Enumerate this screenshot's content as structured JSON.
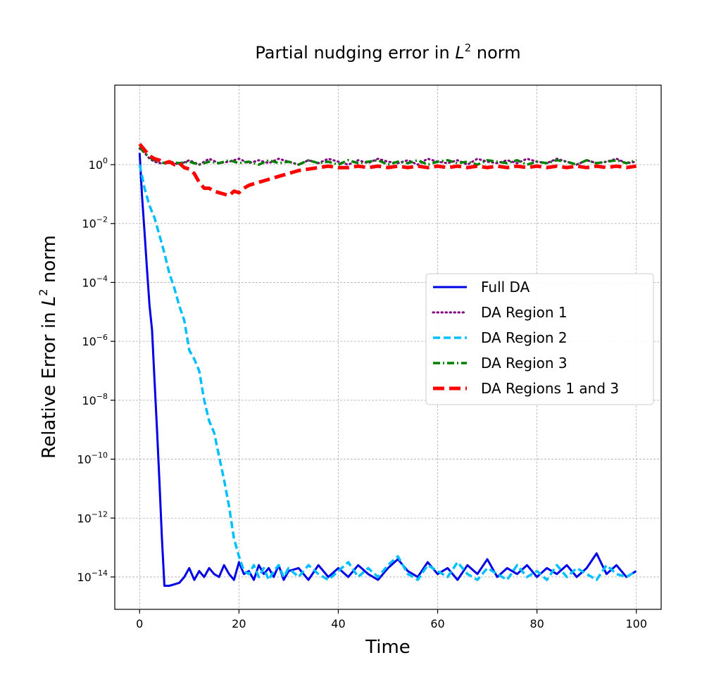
{
  "chart_data": {
    "type": "line",
    "title_prefix": "Partial nudging error in ",
    "title_var": "L",
    "title_sup": "2",
    "title_suffix": " norm",
    "xlabel": "Time",
    "ylabel_prefix": "Relative Error in ",
    "ylabel_var": "L",
    "ylabel_sup": "2",
    "ylabel_suffix": " norm",
    "y_scale": "log",
    "xlim": [
      -5,
      105
    ],
    "ylim_exp": [
      -15.1,
      2.7
    ],
    "x_ticks": [
      0,
      20,
      40,
      60,
      80,
      100
    ],
    "x_tick_labels": [
      "0",
      "20",
      "40",
      "60",
      "80",
      "100"
    ],
    "y_ticks_exp": [
      0,
      -2,
      -4,
      -6,
      -8,
      -10,
      -12,
      -14
    ],
    "y_tick_labels_base": [
      "10",
      "10",
      "10",
      "10",
      "10",
      "10",
      "10",
      "10"
    ],
    "y_tick_labels_exp": [
      "0",
      "−2",
      "−4",
      "−6",
      "−8",
      "−10",
      "−12",
      "−14"
    ],
    "grid": true,
    "legend_position": "center-right",
    "series": [
      {
        "name": "Full DA",
        "color": "#0000e6",
        "style": "solid",
        "x": [
          0,
          0.5,
          1,
          1.5,
          2,
          2.5,
          3,
          3.5,
          4,
          4.5,
          5,
          5.5,
          6,
          7,
          8,
          9,
          10,
          11,
          12,
          13,
          14,
          15,
          16,
          17,
          18,
          19,
          20,
          21,
          22,
          23,
          24,
          25,
          26,
          27,
          28,
          29,
          30,
          32,
          34,
          36,
          38,
          40,
          42,
          44,
          46,
          48,
          50,
          52,
          54,
          56,
          58,
          60,
          62,
          64,
          66,
          68,
          70,
          72,
          74,
          76,
          78,
          80,
          82,
          84,
          86,
          88,
          90,
          92,
          94,
          96,
          98,
          100
        ],
        "log10_y": [
          0.4,
          -1.1,
          -2.3,
          -3.6,
          -4.8,
          -5.6,
          -7.3,
          -9.0,
          -10.8,
          -12.7,
          -14.3,
          -14.3,
          -14.3,
          -14.25,
          -14.2,
          -14.0,
          -13.7,
          -14.1,
          -13.8,
          -14.0,
          -13.7,
          -13.9,
          -14.0,
          -13.6,
          -13.9,
          -14.1,
          -13.5,
          -13.9,
          -13.8,
          -14.1,
          -13.6,
          -13.9,
          -13.7,
          -14.0,
          -13.6,
          -14.1,
          -13.8,
          -13.7,
          -14.1,
          -13.6,
          -14.0,
          -13.7,
          -14.0,
          -13.6,
          -13.9,
          -14.1,
          -13.7,
          -13.4,
          -13.8,
          -14.0,
          -13.5,
          -13.9,
          -13.7,
          -14.1,
          -13.6,
          -13.9,
          -13.4,
          -14.0,
          -13.7,
          -13.9,
          -13.6,
          -14.0,
          -13.7,
          -13.9,
          -13.6,
          -14.0,
          -13.7,
          -13.2,
          -13.9,
          -13.6,
          -14.0,
          -13.8
        ]
      },
      {
        "name": "DA Region 1",
        "color": "#800080",
        "style": "dotted",
        "x": [
          0,
          1,
          2,
          3,
          4,
          5,
          6,
          8,
          10,
          12,
          14,
          16,
          18,
          20,
          22,
          24,
          26,
          28,
          30,
          32,
          34,
          36,
          38,
          40,
          42,
          44,
          46,
          48,
          50,
          52,
          54,
          56,
          58,
          60,
          62,
          64,
          66,
          68,
          70,
          72,
          74,
          76,
          78,
          80,
          82,
          84,
          86,
          88,
          90,
          92,
          94,
          96,
          98,
          100
        ],
        "log10_y": [
          0.55,
          0.4,
          0.2,
          0.1,
          0.05,
          0.05,
          0.1,
          0.0,
          0.15,
          0.0,
          0.2,
          0.05,
          0.1,
          0.2,
          0.05,
          0.15,
          0.05,
          0.2,
          0.1,
          0.0,
          0.15,
          0.05,
          0.2,
          0.1,
          0.0,
          0.15,
          0.05,
          0.2,
          0.1,
          0.05,
          0.15,
          0.0,
          0.2,
          0.1,
          0.05,
          0.15,
          0.0,
          0.2,
          0.1,
          0.05,
          0.15,
          0.05,
          0.2,
          0.1,
          0.05,
          0.2,
          0.1,
          0.0,
          0.15,
          0.05,
          0.1,
          0.2,
          0.05,
          0.1
        ]
      },
      {
        "name": "DA Region 2",
        "color": "#00bfff",
        "style": "dashed",
        "x": [
          0,
          1,
          2,
          3,
          4,
          5,
          6,
          7,
          8,
          9,
          10,
          11,
          12,
          13,
          14,
          15,
          16,
          17,
          18,
          19,
          20,
          21,
          22,
          23,
          24,
          25,
          26,
          27,
          28,
          29,
          30,
          32,
          34,
          36,
          38,
          40,
          42,
          44,
          46,
          48,
          50,
          52,
          54,
          56,
          58,
          60,
          62,
          64,
          66,
          68,
          70,
          72,
          74,
          76,
          78,
          80,
          82,
          84,
          86,
          88,
          90,
          92,
          94,
          96,
          98,
          100
        ],
        "log10_y": [
          0.0,
          -0.8,
          -1.4,
          -1.8,
          -2.4,
          -3.0,
          -3.7,
          -4.2,
          -4.8,
          -5.3,
          -6.3,
          -6.6,
          -7.0,
          -8.0,
          -8.7,
          -9.1,
          -9.9,
          -10.7,
          -11.6,
          -12.7,
          -13.3,
          -13.8,
          -13.9,
          -13.6,
          -14.0,
          -13.7,
          -14.1,
          -13.8,
          -13.6,
          -14.0,
          -13.7,
          -14.0,
          -13.6,
          -13.9,
          -14.1,
          -13.8,
          -13.5,
          -14.0,
          -13.7,
          -14.0,
          -13.6,
          -13.3,
          -13.9,
          -14.1,
          -13.6,
          -13.8,
          -14.0,
          -13.5,
          -13.9,
          -14.1,
          -13.7,
          -13.9,
          -14.1,
          -13.6,
          -14.0,
          -13.8,
          -14.1,
          -13.6,
          -14.0,
          -13.7,
          -13.9,
          -14.1,
          -13.6,
          -13.9,
          -14.0,
          -13.8
        ]
      },
      {
        "name": "DA Region 3",
        "color": "#008000",
        "style": "dashdot",
        "x": [
          0,
          1,
          2,
          3,
          4,
          5,
          6,
          8,
          10,
          12,
          14,
          16,
          18,
          20,
          22,
          24,
          26,
          28,
          30,
          32,
          34,
          36,
          38,
          40,
          42,
          44,
          46,
          48,
          50,
          52,
          54,
          56,
          58,
          60,
          62,
          64,
          66,
          68,
          70,
          72,
          74,
          76,
          78,
          80,
          82,
          84,
          86,
          88,
          90,
          92,
          94,
          96,
          98,
          100
        ],
        "log10_y": [
          0.6,
          0.4,
          0.25,
          0.15,
          0.1,
          0.05,
          0.1,
          0.05,
          0.1,
          0.0,
          0.1,
          0.05,
          0.15,
          0.05,
          0.1,
          0.0,
          0.15,
          0.05,
          0.1,
          0.0,
          0.15,
          0.05,
          0.1,
          0.0,
          0.15,
          0.05,
          0.1,
          0.15,
          0.0,
          0.1,
          0.05,
          0.15,
          0.0,
          0.1,
          0.15,
          0.05,
          0.1,
          0.0,
          0.15,
          0.1,
          0.05,
          0.15,
          0.0,
          0.1,
          0.05,
          0.15,
          0.1,
          0.0,
          0.15,
          0.05,
          0.1,
          0.15,
          0.05,
          0.15
        ]
      },
      {
        "name": "DA Regions 1 and 3",
        "color": "#ff0000",
        "style": "bigdash",
        "x": [
          0,
          1,
          2,
          3,
          4,
          5,
          6,
          7,
          8,
          9,
          10,
          11,
          12,
          13,
          14,
          15,
          16,
          17,
          18,
          19,
          20,
          21,
          22,
          24,
          26,
          28,
          30,
          32,
          34,
          36,
          38,
          40,
          42,
          44,
          46,
          48,
          50,
          52,
          54,
          56,
          58,
          60,
          62,
          64,
          66,
          68,
          70,
          72,
          74,
          76,
          78,
          80,
          82,
          84,
          86,
          88,
          90,
          92,
          94,
          96,
          98,
          100
        ],
        "log10_y": [
          0.7,
          0.5,
          0.3,
          0.2,
          0.15,
          0.05,
          0.1,
          0.0,
          0.05,
          -0.1,
          -0.15,
          -0.3,
          -0.6,
          -0.8,
          -0.8,
          -0.9,
          -0.95,
          -1.0,
          -1.05,
          -0.9,
          -0.95,
          -0.8,
          -0.7,
          -0.6,
          -0.5,
          -0.4,
          -0.3,
          -0.2,
          -0.15,
          -0.1,
          -0.05,
          -0.1,
          -0.1,
          -0.05,
          -0.1,
          -0.05,
          -0.1,
          -0.05,
          -0.1,
          -0.05,
          -0.1,
          -0.05,
          -0.1,
          -0.05,
          -0.1,
          -0.05,
          -0.1,
          -0.05,
          -0.1,
          -0.05,
          -0.1,
          -0.05,
          -0.1,
          -0.05,
          -0.1,
          -0.05,
          -0.1,
          -0.05,
          -0.1,
          -0.05,
          -0.1,
          -0.05
        ]
      }
    ]
  }
}
